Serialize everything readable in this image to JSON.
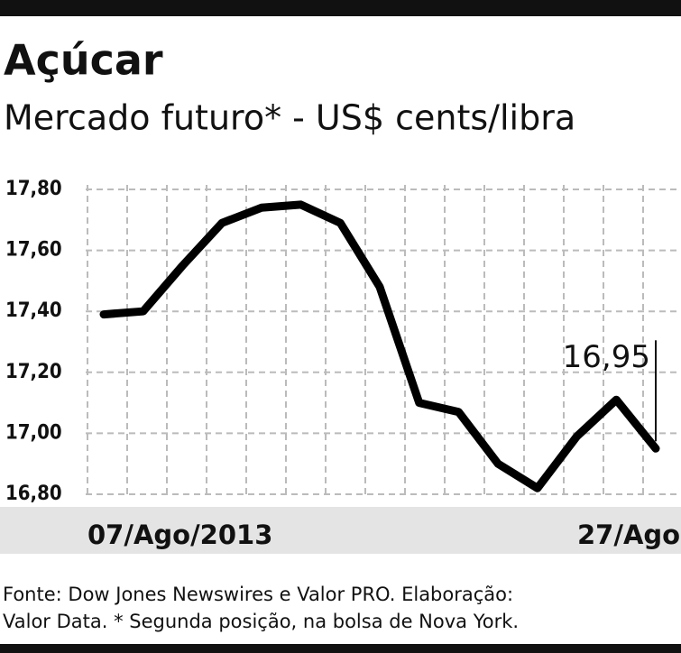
{
  "chart_data": {
    "type": "line",
    "title": "Açúcar",
    "subtitle": "Mercado futuro* - US$ cents/libra",
    "categories": [
      "07/Ago/2013",
      null,
      null,
      null,
      null,
      null,
      null,
      null,
      null,
      null,
      null,
      null,
      null,
      null,
      "27/Ago"
    ],
    "series": [
      {
        "color": "#000000",
        "values": [
          17.39,
          17.4,
          17.55,
          17.69,
          17.74,
          17.75,
          17.69,
          17.48,
          17.1,
          17.07,
          16.9,
          16.82,
          16.99,
          17.11,
          16.95
        ],
        "value_labels": [
          null,
          null,
          null,
          null,
          null,
          null,
          null,
          null,
          null,
          null,
          null,
          null,
          null,
          null,
          "16,95"
        ]
      }
    ],
    "ylim": [
      16.8,
      17.8
    ],
    "yticks": [
      {
        "value": 16.8,
        "label": "16,80"
      },
      {
        "value": 17.0,
        "label": "17,00"
      },
      {
        "value": 17.2,
        "label": "17,20"
      },
      {
        "value": 17.4,
        "label": "17,40"
      },
      {
        "value": 17.6,
        "label": "17,60"
      },
      {
        "value": 17.8,
        "label": "17,80"
      }
    ],
    "grid": true,
    "footnote": [
      "Fonte: Dow Jones Newswires e Valor PRO. Elaboração:",
      "Valor Data. * Segunda posição, na bolsa de Nova York."
    ]
  }
}
